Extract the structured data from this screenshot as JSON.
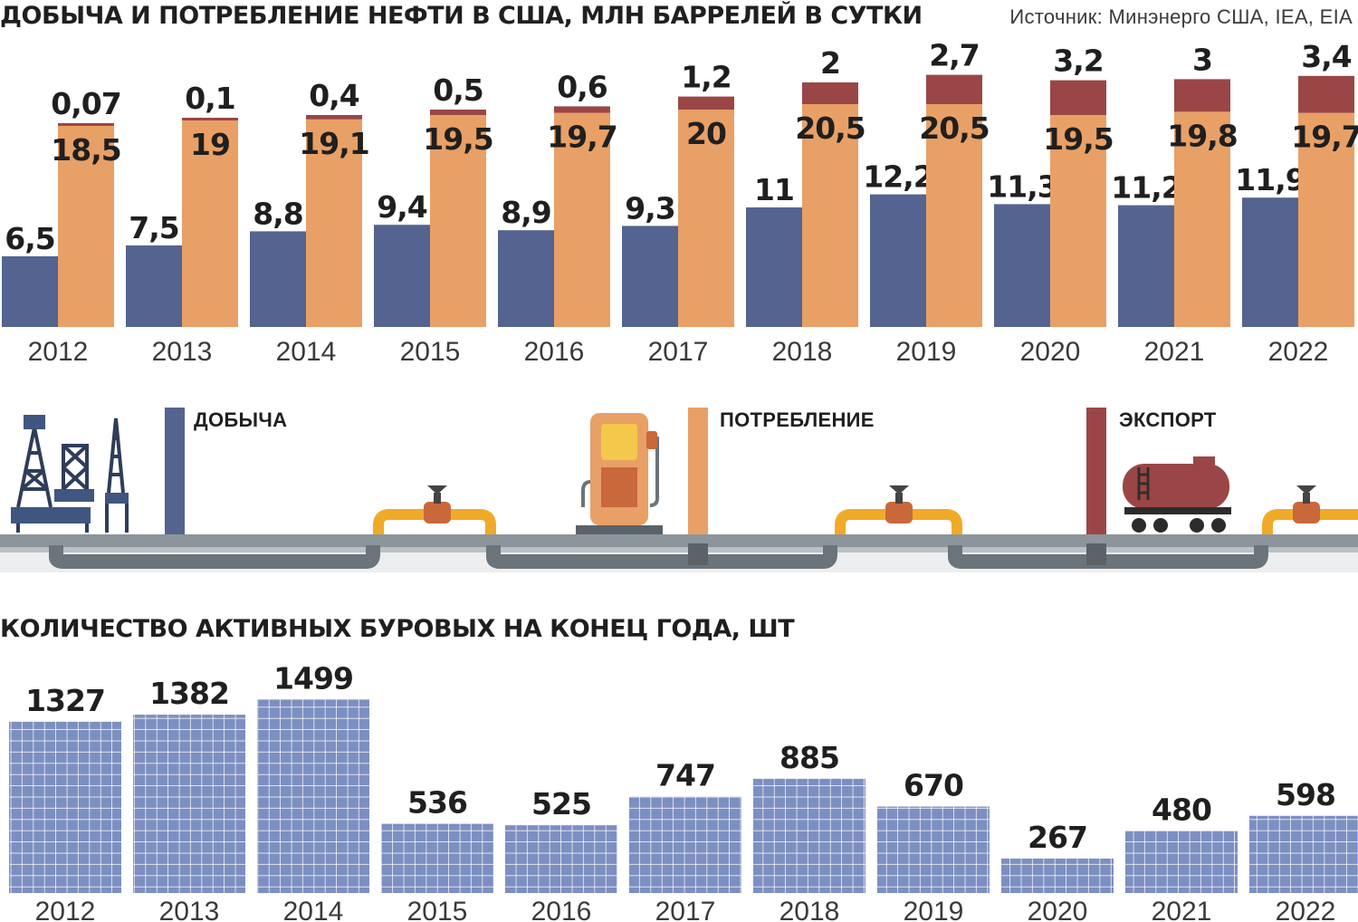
{
  "title_top": "ДОБЫЧА И ПОТРЕБЛЕНИЕ НЕФТИ В США, МЛН БАРРЕЛЕЙ В СУТКИ",
  "source": "Источник: Минэнерго США, IEA, EIA",
  "title_bottom": "КОЛИЧЕСТВО АКТИВНЫХ БУРОВЫХ НА КОНЕЦ ГОДА, ШТ",
  "legend": {
    "production": "ДОБЫЧА",
    "consumption": "ПОТРЕБЛЕНИЕ",
    "export": "ЭКСПОРТ"
  },
  "colors": {
    "production": "#546390",
    "consumption": "#e8a066",
    "export": "#9a4646",
    "rigs": "#7c8fc1",
    "pipe": "#8c959c"
  },
  "chart_data": [
    {
      "type": "bar",
      "title": "ДОБЫЧА И ПОТРЕБЛЕНИЕ НЕФТИ В США, МЛН БАРРЕЛЕЙ В СУТКИ",
      "categories": [
        "2012",
        "2013",
        "2014",
        "2015",
        "2016",
        "2017",
        "2018",
        "2019",
        "2020",
        "2021",
        "2022"
      ],
      "series": [
        {
          "name": "ДОБЫЧА",
          "values": [
            6.5,
            7.5,
            8.8,
            9.4,
            8.9,
            9.3,
            11,
            12.2,
            11.3,
            11.2,
            11.9
          ],
          "labels": [
            "6,5",
            "7,5",
            "8,8",
            "9,4",
            "8,9",
            "9,3",
            "11",
            "12,2",
            "11,3",
            "11,2",
            "11,9"
          ]
        },
        {
          "name": "ПОТРЕБЛЕНИЕ",
          "values": [
            18.5,
            19,
            19.1,
            19.5,
            19.7,
            20,
            20.5,
            20.5,
            19.5,
            19.8,
            19.7
          ],
          "labels": [
            "18,5",
            "19",
            "19,1",
            "19,5",
            "19,7",
            "20",
            "20,5",
            "20,5",
            "19,5",
            "19,8",
            "19,7"
          ]
        },
        {
          "name": "ЭКСПОРТ",
          "values": [
            0.07,
            0.1,
            0.4,
            0.5,
            0.6,
            1.2,
            2,
            2.7,
            3.2,
            3,
            3.4
          ],
          "labels": [
            "0,07",
            "0,1",
            "0,4",
            "0,5",
            "0,6",
            "1,2",
            "2",
            "2,7",
            "3,2",
            "3",
            "3,4"
          ]
        }
      ],
      "stacking": "ЭКСПОРТ stacked on top of ПОТРЕБЛЕНИЕ",
      "grid": false,
      "legend": "pipeline illustration below chart"
    },
    {
      "type": "bar",
      "title": "КОЛИЧЕСТВО АКТИВНЫХ БУРОВЫХ НА КОНЕЦ ГОДА, ШТ",
      "categories": [
        "2012",
        "2013",
        "2014",
        "2015",
        "2016",
        "2017",
        "2018",
        "2019",
        "2020",
        "2021",
        "2022"
      ],
      "values": [
        1327,
        1382,
        1499,
        536,
        525,
        747,
        885,
        670,
        267,
        480,
        598
      ],
      "grid": false
    }
  ]
}
